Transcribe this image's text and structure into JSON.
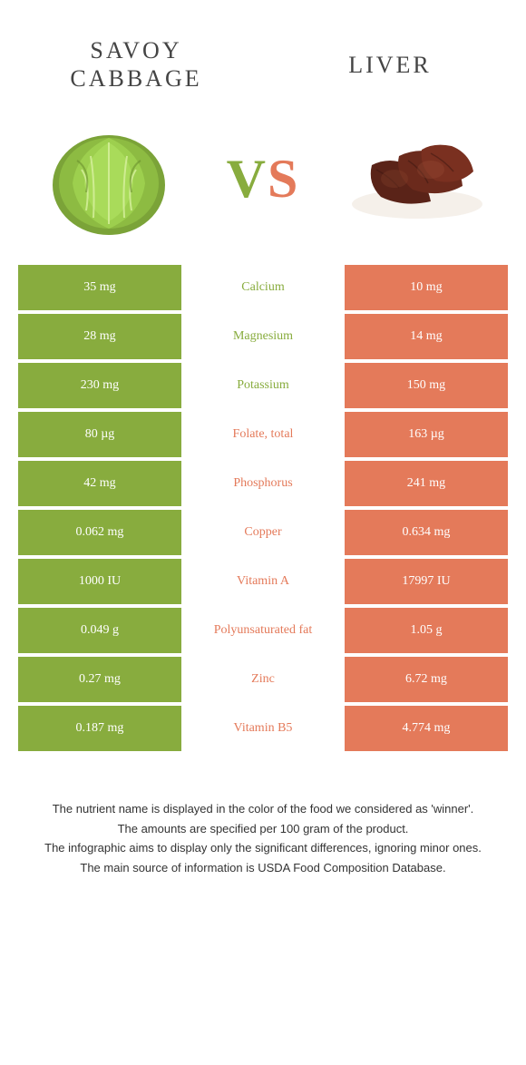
{
  "colors": {
    "green": "#88ac3e",
    "orange": "#e47a5a",
    "text_dark": "#444444",
    "white": "#ffffff"
  },
  "header": {
    "left_title": "SAVOY CABBAGE",
    "right_title": "LIVER",
    "vs_v": "V",
    "vs_s": "S"
  },
  "table": {
    "rows": [
      {
        "left": "35 mg",
        "label": "Calcium",
        "right": "10 mg",
        "winner": "left"
      },
      {
        "left": "28 mg",
        "label": "Magnesium",
        "right": "14 mg",
        "winner": "left"
      },
      {
        "left": "230 mg",
        "label": "Potassium",
        "right": "150 mg",
        "winner": "left"
      },
      {
        "left": "80 µg",
        "label": "Folate, total",
        "right": "163 µg",
        "winner": "right"
      },
      {
        "left": "42 mg",
        "label": "Phosphorus",
        "right": "241 mg",
        "winner": "right"
      },
      {
        "left": "0.062 mg",
        "label": "Copper",
        "right": "0.634 mg",
        "winner": "right"
      },
      {
        "left": "1000 IU",
        "label": "Vitamin A",
        "right": "17997 IU",
        "winner": "right"
      },
      {
        "left": "0.049 g",
        "label": "Polyunsaturated fat",
        "right": "1.05 g",
        "winner": "right"
      },
      {
        "left": "0.27 mg",
        "label": "Zinc",
        "right": "6.72 mg",
        "winner": "right"
      },
      {
        "left": "0.187 mg",
        "label": "Vitamin B5",
        "right": "4.774 mg",
        "winner": "right"
      }
    ]
  },
  "footnotes": [
    "The nutrient name is displayed in the color of the food we considered as 'winner'.",
    "The amounts are specified per 100 gram of the product.",
    "The infographic aims to display only the significant differences, ignoring minor ones.",
    "The main source of information is USDA Food Composition Database."
  ]
}
